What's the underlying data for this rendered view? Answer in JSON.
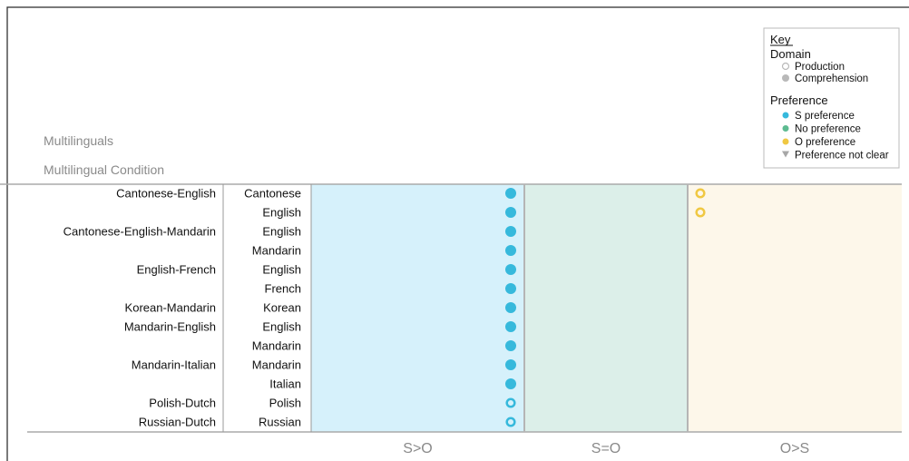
{
  "chart_data": {
    "type": "scatter",
    "title": "Multilinguals",
    "row_header": "Multilingual Condition",
    "x_categories": [
      "S>O",
      "S=O",
      "O>S"
    ],
    "region_colors": [
      "#d6f1fb",
      "#dcefe9",
      "#fdf7ea"
    ],
    "rows": [
      {
        "condition": "Cantonese-English",
        "language": "Cantonese",
        "preference": "S preference",
        "domain": "Comprehension"
      },
      {
        "condition": "",
        "language": "English",
        "preference": "S preference",
        "domain": "Comprehension"
      },
      {
        "condition": "Cantonese-English-Mandarin",
        "language": "English",
        "preference": "S preference",
        "domain": "Comprehension"
      },
      {
        "condition": "",
        "language": "Mandarin",
        "preference": "S preference",
        "domain": "Comprehension"
      },
      {
        "condition": "English-French",
        "language": "English",
        "preference": "S preference",
        "domain": "Comprehension"
      },
      {
        "condition": "",
        "language": "French",
        "preference": "S preference",
        "domain": "Comprehension"
      },
      {
        "condition": "Korean-Mandarin",
        "language": "Korean",
        "preference": "S preference",
        "domain": "Comprehension"
      },
      {
        "condition": "Mandarin-English",
        "language": "English",
        "preference": "S preference",
        "domain": "Comprehension"
      },
      {
        "condition": "",
        "language": "Mandarin",
        "preference": "S preference",
        "domain": "Comprehension"
      },
      {
        "condition": "Mandarin-Italian",
        "language": "Mandarin",
        "preference": "S preference",
        "domain": "Comprehension"
      },
      {
        "condition": "",
        "language": "Italian",
        "preference": "S preference",
        "domain": "Comprehension"
      },
      {
        "condition": "Polish-Dutch",
        "language": "Polish",
        "preference": "S preference",
        "domain": "Production"
      },
      {
        "condition": "Russian-Dutch",
        "language": "Russian",
        "preference": "S preference",
        "domain": "Production"
      }
    ],
    "extra_points": [
      {
        "row": 0,
        "preference": "O preference",
        "domain": "Production"
      },
      {
        "row": 1,
        "preference": "O preference",
        "domain": "Production"
      }
    ],
    "legend": {
      "title": "Key",
      "domain_title": "Domain",
      "domain_items": [
        {
          "label": "Production",
          "style": "open"
        },
        {
          "label": "Comprehension",
          "style": "filled"
        }
      ],
      "preference_title": "Preference",
      "preference_items": [
        {
          "label": "S preference",
          "color": "#36b9dc",
          "marker": "circle"
        },
        {
          "label": "No preference",
          "color": "#5dbb91",
          "marker": "circle"
        },
        {
          "label": "O preference",
          "color": "#f0c843",
          "marker": "circle"
        },
        {
          "label": "Preference not clear",
          "color": "#a7a7a7",
          "marker": "triangle"
        }
      ],
      "placement": "top-right"
    },
    "colors": {
      "S preference": "#36b9dc",
      "No preference": "#5dbb91",
      "O preference": "#f0c843",
      "Preference not clear": "#a7a7a7",
      "domain_gray": "#b9b9b9"
    }
  }
}
